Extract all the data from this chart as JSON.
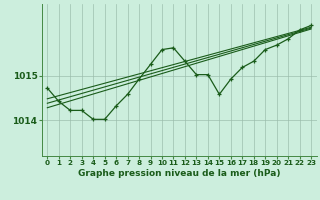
{
  "title": "Graphe pression niveau de la mer (hPa)",
  "bg_color": "#cceedd",
  "grid_color": "#99bbaa",
  "line_color": "#1a5c1a",
  "x_ticks": [
    0,
    1,
    2,
    3,
    4,
    5,
    6,
    7,
    8,
    9,
    10,
    11,
    12,
    13,
    14,
    15,
    16,
    17,
    18,
    19,
    20,
    21,
    22,
    23
  ],
  "ylim": [
    1013.2,
    1016.6
  ],
  "yticks": [
    1014,
    1015
  ],
  "main_x": [
    0,
    1,
    2,
    3,
    4,
    5,
    6,
    7,
    8,
    9,
    10,
    11,
    12,
    13,
    14,
    15,
    16,
    17,
    18,
    19,
    20,
    21,
    22,
    23
  ],
  "main_y": [
    1014.72,
    1014.42,
    1014.22,
    1014.22,
    1014.02,
    1014.02,
    1014.32,
    1014.58,
    1014.92,
    1015.25,
    1015.58,
    1015.62,
    1015.32,
    1015.02,
    1015.02,
    1014.58,
    1014.92,
    1015.18,
    1015.32,
    1015.58,
    1015.68,
    1015.82,
    1016.02,
    1016.12
  ],
  "trend1_x": [
    0,
    23
  ],
  "trend1_y": [
    1014.48,
    1016.08
  ],
  "trend2_x": [
    0,
    23
  ],
  "trend2_y": [
    1014.28,
    1016.04
  ],
  "trend3_x": [
    0,
    23
  ],
  "trend3_y": [
    1014.38,
    1016.06
  ],
  "xlabel_fontsize": 6.5,
  "ytick_fontsize": 6.5,
  "xtick_fontsize": 5.2
}
